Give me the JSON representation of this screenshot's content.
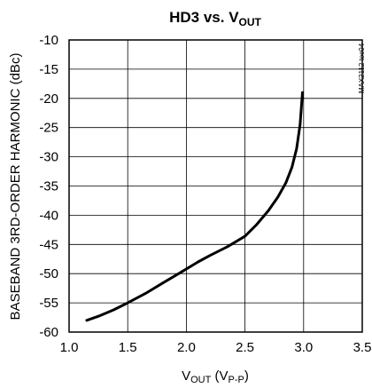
{
  "chart_data": {
    "type": "line",
    "title": {
      "main": "HD3 vs. V",
      "sub": "OUT"
    },
    "xlabel": {
      "main": "V",
      "sub": "OUT",
      "rest": " (V",
      "sub2": "P-P",
      "end": ")"
    },
    "ylabel": "BASEBAND 3RD-ORDER HARMONIC (dBc)",
    "xlim": [
      1.0,
      3.5
    ],
    "ylim": [
      -60,
      -10
    ],
    "xticks": [
      1.0,
      1.5,
      2.0,
      2.5,
      3.0,
      3.5
    ],
    "xtick_labels": [
      "1.0",
      "1.5",
      "2.0",
      "2.5",
      "3.0",
      "3.5"
    ],
    "yticks": [
      -10,
      -15,
      -20,
      -25,
      -30,
      -35,
      -40,
      -45,
      -50,
      -55,
      -60
    ],
    "ytick_labels": [
      "-10",
      "-15",
      "-20",
      "-25",
      "-30",
      "-35",
      "-40",
      "-45",
      "-50",
      "-55",
      "-60"
    ],
    "grid": true,
    "watermark": "MAX2112 toc04",
    "series": [
      {
        "color": "#000000",
        "x": [
          1.15,
          1.25,
          1.38,
          1.5,
          1.65,
          1.8,
          1.95,
          2.1,
          2.2,
          2.35,
          2.5,
          2.6,
          2.7,
          2.78,
          2.85,
          2.9,
          2.94,
          2.97,
          2.99
        ],
        "y": [
          -58.0,
          -57.3,
          -56.2,
          -55.0,
          -53.4,
          -51.6,
          -49.8,
          -48.0,
          -46.9,
          -45.4,
          -43.6,
          -41.6,
          -39.2,
          -36.9,
          -34.4,
          -31.8,
          -28.6,
          -24.5,
          -19.0
        ]
      }
    ]
  }
}
